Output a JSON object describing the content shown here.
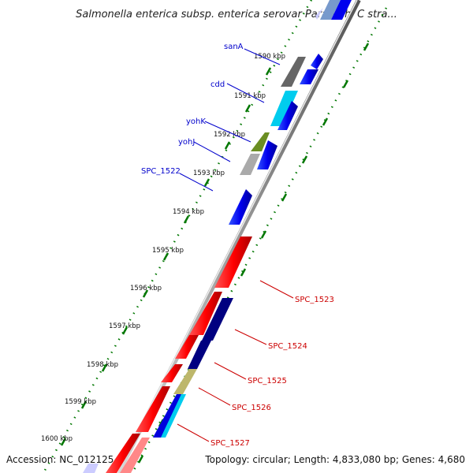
{
  "title": "Salmonella enterica subsp. enterica serovar Paratyphi C stra...",
  "footer": {
    "accession": "Accession: NC_012125",
    "summary": "Topology: circular; Length: 4,833,080 bp; Genes: 4,680"
  },
  "ticks": [
    "1590 kbp",
    "1591 kbp",
    "1592 kbp",
    "1593 kbp",
    "1594 kbp",
    "1595 kbp",
    "1596 kbp",
    "1597 kbp",
    "1598 kbp",
    "1599 kbp",
    "1600 kbp"
  ],
  "labels_forward": [
    "sanA",
    "cdd",
    "yohK",
    "yohJ",
    "SPC_1522"
  ],
  "labels_reverse": [
    "SPC_1523",
    "SPC_1524",
    "SPC_1525",
    "SPC_1526",
    "SPC_1527"
  ],
  "colors": {
    "forward_gene": "#0000ee",
    "reverse_gene": "#ff0000",
    "navy_gene": "#000080",
    "gray_gene": "#666666",
    "cyan_gene": "#00ccee",
    "olive_gene": "#6b8e23",
    "khaki_gene": "#bdb76b",
    "backbone": "#888888",
    "tick_green": "#007700"
  }
}
